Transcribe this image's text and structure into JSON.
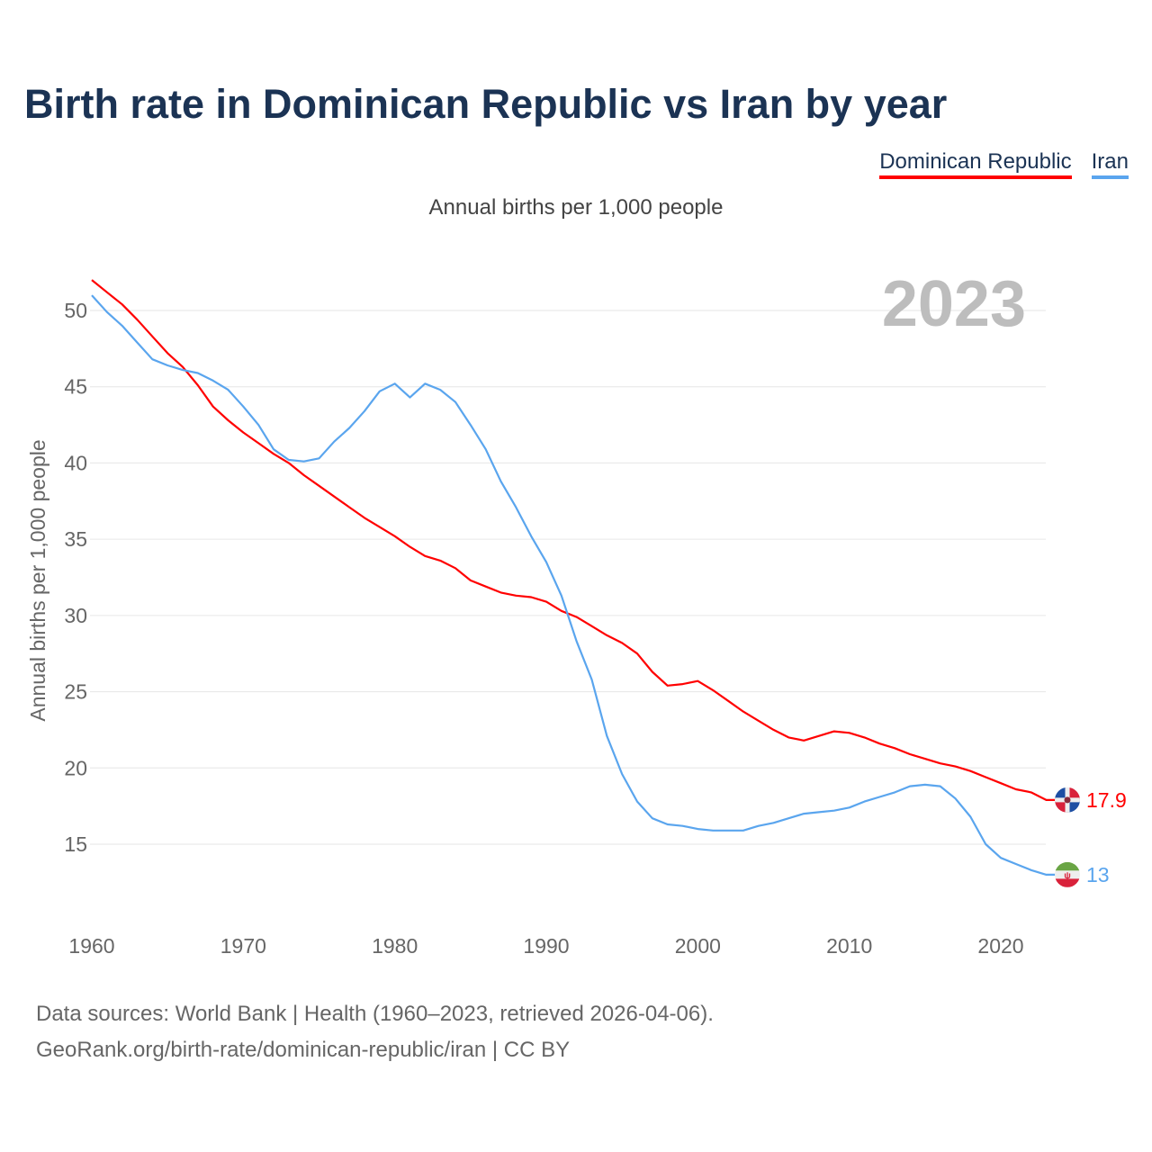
{
  "title": "Birth rate in Dominican Republic vs Iran by year",
  "subtitle": "Annual births per 1,000 people",
  "source_line1": "Data sources: World Bank | Health (1960–2023, retrieved 2026-04-06).",
  "source_line2": "GeoRank.org/birth-rate/dominican-republic/iran | CC BY",
  "chart_data": {
    "type": "line",
    "title": "Birth rate in Dominican Republic vs Iran by year",
    "ylabel": "Annual births per 1,000 people",
    "xlabel": "",
    "year_label": "2023",
    "xlim": [
      1960,
      2023
    ],
    "ylim": [
      10.5,
      52.5
    ],
    "xticks": [
      1960,
      1970,
      1980,
      1990,
      2000,
      2010,
      2020
    ],
    "yticks": [
      15,
      20,
      25,
      30,
      35,
      40,
      45,
      50
    ],
    "grid": true,
    "legend_placement": "top-right",
    "x_start": 1960,
    "series": [
      {
        "name": "Dominican Republic",
        "color": "#ff0000",
        "end_label": "17.9",
        "values": [
          52.0,
          51.2,
          50.4,
          49.4,
          48.3,
          47.2,
          46.3,
          45.1,
          43.7,
          42.8,
          42.0,
          41.3,
          40.6,
          40.0,
          39.2,
          38.5,
          37.8,
          37.1,
          36.4,
          35.8,
          35.2,
          34.5,
          33.9,
          33.6,
          33.1,
          32.3,
          31.9,
          31.5,
          31.3,
          31.2,
          30.9,
          30.3,
          29.9,
          29.3,
          28.7,
          28.2,
          27.5,
          26.3,
          25.4,
          25.5,
          25.7,
          25.1,
          24.4,
          23.7,
          23.1,
          22.5,
          22.0,
          21.8,
          22.1,
          22.4,
          22.3,
          22.0,
          21.6,
          21.3,
          20.9,
          20.6,
          20.3,
          20.1,
          19.8,
          19.4,
          19.0,
          18.6,
          18.4,
          17.9
        ]
      },
      {
        "name": "Iran",
        "color": "#5aa5ee",
        "end_label": "13",
        "values": [
          51.0,
          49.9,
          49.0,
          47.9,
          46.8,
          46.4,
          46.1,
          45.9,
          45.4,
          44.8,
          43.7,
          42.5,
          40.9,
          40.2,
          40.1,
          40.3,
          41.4,
          42.3,
          43.4,
          44.7,
          45.2,
          44.3,
          45.2,
          44.8,
          44.0,
          42.5,
          40.9,
          38.8,
          37.1,
          35.2,
          33.5,
          31.3,
          28.3,
          25.8,
          22.1,
          19.6,
          17.8,
          16.7,
          16.3,
          16.2,
          16.0,
          15.9,
          15.9,
          15.9,
          16.2,
          16.4,
          16.7,
          17.0,
          17.1,
          17.2,
          17.4,
          17.8,
          18.1,
          18.4,
          18.8,
          18.9,
          18.8,
          18.0,
          16.8,
          15.0,
          14.1,
          13.7,
          13.3,
          13.0
        ]
      }
    ]
  }
}
